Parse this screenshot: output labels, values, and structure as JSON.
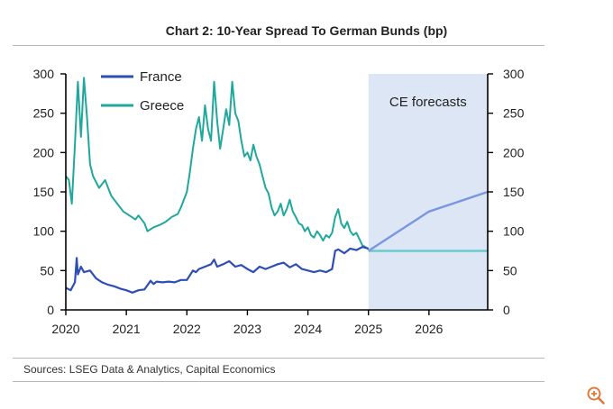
{
  "title": "Chart 2: 10-Year Spread To German Bunds (bp)",
  "source": "Sources: LSEG Data & Analytics, Capital Economics",
  "colors": {
    "france": "#2f4eb5",
    "greece": "#20a89d",
    "france_forecast": "#7b96e0",
    "greece_forecast": "#6cc9cf",
    "forecast_shade": "#dce6f4"
  },
  "chart_data": {
    "type": "line",
    "title": "Chart 2: 10-Year Spread To German Bunds (bp)",
    "xlabel": "",
    "ylabel": "",
    "xlim": [
      2020,
      2026.97
    ],
    "ylim": [
      0,
      300
    ],
    "x_ticks": [
      "2020",
      "2021",
      "2022",
      "2023",
      "2024",
      "2025",
      "2026"
    ],
    "y_ticks": [
      "0",
      "50",
      "100",
      "150",
      "200",
      "250",
      "300"
    ],
    "legend": {
      "position": "top-left",
      "entries": [
        "France",
        "Greece"
      ]
    },
    "forecast_region": {
      "from": 2025,
      "to": 2026.97,
      "label": "CE forecasts"
    },
    "series": [
      {
        "name": "France",
        "points": [
          [
            2020.0,
            28
          ],
          [
            2020.08,
            25
          ],
          [
            2020.15,
            35
          ],
          [
            2020.18,
            66
          ],
          [
            2020.2,
            45
          ],
          [
            2020.25,
            55
          ],
          [
            2020.3,
            48
          ],
          [
            2020.4,
            50
          ],
          [
            2020.5,
            40
          ],
          [
            2020.6,
            35
          ],
          [
            2020.7,
            32
          ],
          [
            2020.8,
            30
          ],
          [
            2020.9,
            27
          ],
          [
            2021.0,
            25
          ],
          [
            2021.1,
            22
          ],
          [
            2021.2,
            25
          ],
          [
            2021.3,
            26
          ],
          [
            2021.4,
            37
          ],
          [
            2021.45,
            33
          ],
          [
            2021.5,
            36
          ],
          [
            2021.6,
            35
          ],
          [
            2021.7,
            36
          ],
          [
            2021.8,
            35
          ],
          [
            2021.9,
            38
          ],
          [
            2022.0,
            38
          ],
          [
            2022.1,
            50
          ],
          [
            2022.15,
            48
          ],
          [
            2022.2,
            52
          ],
          [
            2022.3,
            55
          ],
          [
            2022.4,
            58
          ],
          [
            2022.45,
            64
          ],
          [
            2022.5,
            55
          ],
          [
            2022.6,
            58
          ],
          [
            2022.7,
            62
          ],
          [
            2022.8,
            55
          ],
          [
            2022.9,
            57
          ],
          [
            2023.0,
            52
          ],
          [
            2023.1,
            48
          ],
          [
            2023.2,
            55
          ],
          [
            2023.3,
            52
          ],
          [
            2023.4,
            55
          ],
          [
            2023.5,
            58
          ],
          [
            2023.6,
            60
          ],
          [
            2023.7,
            54
          ],
          [
            2023.8,
            58
          ],
          [
            2023.9,
            52
          ],
          [
            2024.0,
            50
          ],
          [
            2024.1,
            48
          ],
          [
            2024.2,
            50
          ],
          [
            2024.3,
            48
          ],
          [
            2024.4,
            52
          ],
          [
            2024.45,
            75
          ],
          [
            2024.5,
            77
          ],
          [
            2024.6,
            72
          ],
          [
            2024.7,
            78
          ],
          [
            2024.8,
            76
          ],
          [
            2024.9,
            80
          ],
          [
            2025.0,
            78
          ]
        ]
      },
      {
        "name": "Greece",
        "points": [
          [
            2020.0,
            170
          ],
          [
            2020.05,
            165
          ],
          [
            2020.1,
            135
          ],
          [
            2020.15,
            210
          ],
          [
            2020.2,
            290
          ],
          [
            2020.25,
            220
          ],
          [
            2020.3,
            295
          ],
          [
            2020.35,
            245
          ],
          [
            2020.4,
            185
          ],
          [
            2020.45,
            170
          ],
          [
            2020.55,
            155
          ],
          [
            2020.65,
            165
          ],
          [
            2020.75,
            145
          ],
          [
            2020.85,
            135
          ],
          [
            2020.95,
            125
          ],
          [
            2021.05,
            120
          ],
          [
            2021.15,
            115
          ],
          [
            2021.2,
            120
          ],
          [
            2021.3,
            110
          ],
          [
            2021.35,
            100
          ],
          [
            2021.45,
            105
          ],
          [
            2021.55,
            108
          ],
          [
            2021.65,
            112
          ],
          [
            2021.75,
            118
          ],
          [
            2021.85,
            122
          ],
          [
            2021.9,
            130
          ],
          [
            2022.0,
            150
          ],
          [
            2022.05,
            175
          ],
          [
            2022.1,
            205
          ],
          [
            2022.15,
            230
          ],
          [
            2022.2,
            245
          ],
          [
            2022.25,
            215
          ],
          [
            2022.3,
            260
          ],
          [
            2022.35,
            230
          ],
          [
            2022.4,
            215
          ],
          [
            2022.45,
            290
          ],
          [
            2022.5,
            240
          ],
          [
            2022.55,
            205
          ],
          [
            2022.6,
            230
          ],
          [
            2022.65,
            255
          ],
          [
            2022.7,
            235
          ],
          [
            2022.75,
            290
          ],
          [
            2022.8,
            250
          ],
          [
            2022.85,
            240
          ],
          [
            2022.9,
            215
          ],
          [
            2022.95,
            195
          ],
          [
            2023.0,
            200
          ],
          [
            2023.05,
            190
          ],
          [
            2023.1,
            210
          ],
          [
            2023.15,
            195
          ],
          [
            2023.2,
            185
          ],
          [
            2023.25,
            170
          ],
          [
            2023.3,
            155
          ],
          [
            2023.35,
            148
          ],
          [
            2023.4,
            130
          ],
          [
            2023.45,
            120
          ],
          [
            2023.5,
            125
          ],
          [
            2023.55,
            135
          ],
          [
            2023.6,
            120
          ],
          [
            2023.65,
            128
          ],
          [
            2023.7,
            140
          ],
          [
            2023.75,
            125
          ],
          [
            2023.8,
            118
          ],
          [
            2023.85,
            110
          ],
          [
            2023.9,
            108
          ],
          [
            2023.95,
            100
          ],
          [
            2024.0,
            105
          ],
          [
            2024.05,
            95
          ],
          [
            2024.1,
            92
          ],
          [
            2024.15,
            100
          ],
          [
            2024.2,
            95
          ],
          [
            2024.25,
            88
          ],
          [
            2024.3,
            95
          ],
          [
            2024.35,
            92
          ],
          [
            2024.4,
            98
          ],
          [
            2024.45,
            118
          ],
          [
            2024.5,
            128
          ],
          [
            2024.55,
            110
          ],
          [
            2024.6,
            104
          ],
          [
            2024.65,
            112
          ],
          [
            2024.7,
            100
          ],
          [
            2024.75,
            95
          ],
          [
            2024.8,
            98
          ],
          [
            2024.85,
            90
          ],
          [
            2024.9,
            82
          ],
          [
            2024.95,
            80
          ],
          [
            2025.0,
            77
          ]
        ]
      },
      {
        "name": "France forecast",
        "points": [
          [
            2025.0,
            75
          ],
          [
            2026.0,
            125
          ],
          [
            2026.97,
            150
          ]
        ]
      },
      {
        "name": "Greece forecast",
        "points": [
          [
            2025.0,
            75
          ],
          [
            2026.97,
            75
          ]
        ]
      }
    ]
  }
}
